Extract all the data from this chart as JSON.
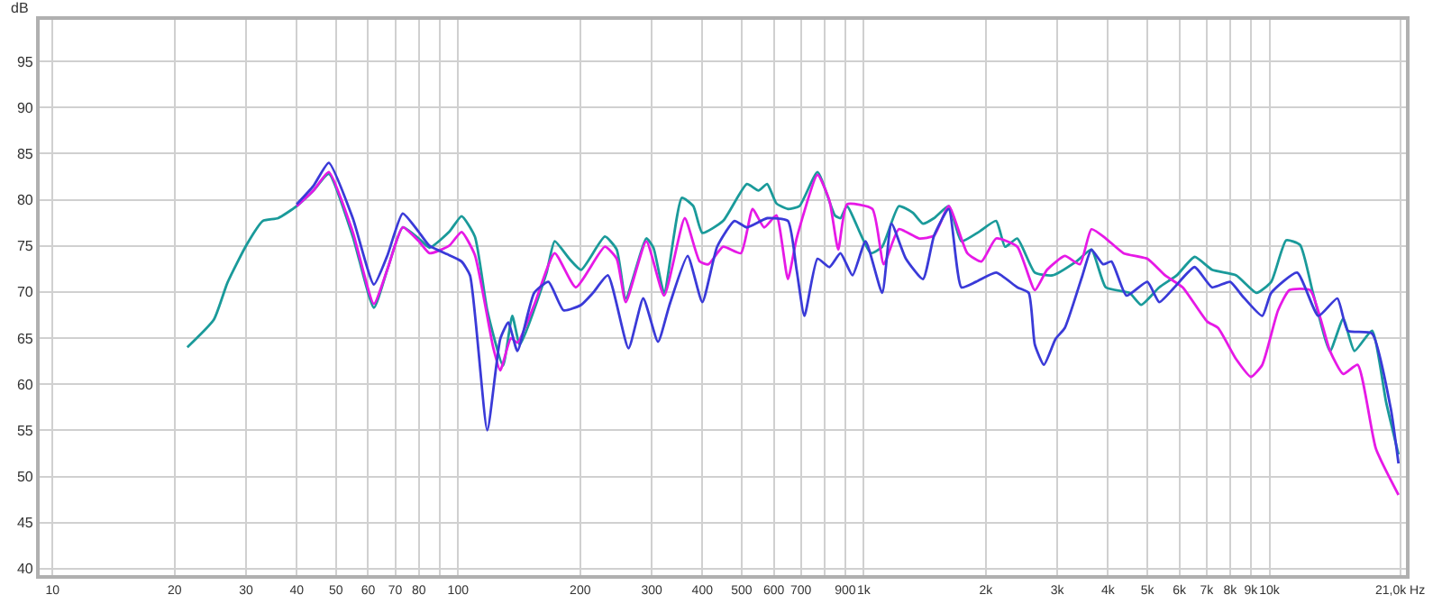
{
  "chart_data": {
    "type": "line",
    "ylabel": "dB",
    "log": "x",
    "grid": true,
    "xlim": [
      9.3,
      21700
    ],
    "ylim": [
      39.3,
      99.5
    ],
    "xticks": [
      10,
      20,
      30,
      40,
      50,
      60,
      70,
      80,
      {
        "value": 90,
        "label": null
      },
      100,
      200,
      300,
      400,
      500,
      600,
      700,
      {
        "value": 800,
        "label": null
      },
      900,
      {
        "value": 1000,
        "label": "1k"
      },
      {
        "value": 2000,
        "label": "2k"
      },
      {
        "value": 3000,
        "label": "3k"
      },
      {
        "value": 4000,
        "label": "4k"
      },
      {
        "value": 5000,
        "label": "5k"
      },
      {
        "value": 6000,
        "label": "6k"
      },
      {
        "value": 7000,
        "label": "7k"
      },
      {
        "value": 8000,
        "label": "8k"
      },
      {
        "value": 9000,
        "label": "9k"
      },
      {
        "value": 10000,
        "label": "10k"
      },
      {
        "value": 21000,
        "label": "21,0k Hz"
      }
    ],
    "yticks": [
      40,
      45,
      50,
      55,
      60,
      65,
      70,
      75,
      80,
      85,
      90,
      95
    ],
    "series": [
      {
        "color": "#1a9a9a",
        "x": [
          21.5,
          25,
          27,
          30,
          33,
          36,
          40,
          44,
          48,
          55,
          62,
          67,
          73,
          80,
          85,
          95,
          102,
          110,
          118,
          129,
          136,
          142,
          165,
          173,
          188,
          201,
          230,
          246,
          259,
          291,
          303,
          322,
          356,
          380,
          400,
          450,
          515,
          550,
          578,
          609,
          650,
          694,
          769,
          849,
          876,
          909,
          1040,
          1110,
          1220,
          1320,
          1400,
          1490,
          1620,
          1740,
          1920,
          2120,
          2230,
          2390,
          2640,
          2920,
          3340,
          3640,
          3950,
          4520,
          4830,
          5350,
          5910,
          6540,
          7220,
          8280,
          9300,
          10100,
          11000,
          11900,
          12800,
          14100,
          15200,
          16200,
          17900,
          19400,
          20800
        ],
        "values": [
          64,
          67,
          71,
          75,
          77.7,
          78,
          79.3,
          81,
          82.8,
          76,
          68.3,
          72.5,
          77,
          75.8,
          74.8,
          76.5,
          78.2,
          76,
          68,
          62,
          67.4,
          64.3,
          72,
          75.5,
          73.6,
          72.4,
          76,
          74.6,
          69.3,
          75.8,
          74.8,
          69.9,
          80.2,
          79.3,
          76.4,
          77.7,
          81.7,
          81,
          81.7,
          79.6,
          79,
          79.3,
          83,
          78.3,
          78,
          79.3,
          74.2,
          74.9,
          79.3,
          78.6,
          77.4,
          78,
          79.3,
          75.5,
          76.5,
          77.7,
          74.9,
          75.8,
          72.1,
          71.8,
          73.3,
          74.6,
          70.5,
          69.9,
          68.6,
          70.5,
          71.8,
          73.8,
          72.4,
          71.8,
          69.9,
          71.1,
          75.6,
          75.1,
          69.9,
          63.6,
          67.1,
          63.6,
          65.8,
          58,
          52.4
        ]
      },
      {
        "color": "#e619e6",
        "x": [
          40,
          44,
          48,
          55,
          62,
          67,
          73,
          80,
          85,
          95,
          102,
          110,
          122,
          127,
          135,
          140,
          154,
          173,
          195,
          230,
          246,
          259,
          291,
          322,
          362,
          394,
          414,
          450,
          498,
          532,
          568,
          609,
          650,
          683,
          769,
          823,
          865,
          909,
          1050,
          1120,
          1220,
          1370,
          1490,
          1620,
          1800,
          1950,
          2120,
          2390,
          2640,
          2830,
          3130,
          3410,
          3640,
          3950,
          4370,
          5000,
          5530,
          6110,
          7020,
          7470,
          8280,
          9000,
          9600,
          10500,
          11200,
          12600,
          14100,
          15200,
          16500,
          18300,
          20800
        ],
        "values": [
          79.3,
          81,
          83,
          76.5,
          68.7,
          72.5,
          77,
          75.5,
          74.2,
          75,
          76.5,
          74,
          64,
          61.5,
          65,
          64.5,
          68.6,
          74.2,
          70.5,
          74.9,
          73.6,
          68.9,
          75.5,
          69.6,
          78,
          73.3,
          73,
          74.9,
          74.2,
          79,
          77,
          78.3,
          71.4,
          75.8,
          82.7,
          79.9,
          74.6,
          79.5,
          79,
          73,
          76.8,
          75.8,
          76.1,
          79.3,
          74.2,
          73.3,
          75.8,
          74.9,
          70.2,
          72.4,
          73.9,
          73,
          76.8,
          75.8,
          74.2,
          73.6,
          71.8,
          70.5,
          66.8,
          66.1,
          62.7,
          60.8,
          62.1,
          68,
          70.2,
          70.2,
          63.6,
          61.1,
          62.1,
          53,
          48
        ]
      },
      {
        "color": "#3a3ad8",
        "x": [
          40,
          44,
          48,
          55,
          62,
          67,
          73,
          80,
          85,
          95,
          102,
          107,
          118,
          127,
          133,
          140,
          154,
          167,
          182,
          201,
          215,
          234,
          263,
          286,
          311,
          332,
          368,
          400,
          435,
          480,
          515,
          578,
          650,
          683,
          714,
          769,
          823,
          876,
          938,
          1010,
          1110,
          1170,
          1270,
          1400,
          1490,
          1620,
          1740,
          1890,
          2120,
          2390,
          2550,
          2640,
          2780,
          2970,
          3130,
          3460,
          3640,
          3890,
          4080,
          4440,
          5000,
          5350,
          5830,
          6540,
          7220,
          8000,
          8560,
          9600,
          10100,
          11700,
          13200,
          14700,
          15600,
          17900,
          19900,
          20800
        ],
        "values": [
          79.5,
          81.5,
          84,
          78,
          70.8,
          74,
          78.5,
          76.5,
          75,
          74,
          73.3,
          71.8,
          55,
          64.9,
          66.7,
          63.6,
          69.9,
          71.1,
          68,
          68.6,
          69.9,
          71.8,
          63.9,
          69.3,
          64.6,
          68.6,
          73.9,
          68.9,
          74.9,
          77.7,
          77,
          78,
          77.7,
          72.4,
          67.4,
          73.6,
          72.7,
          74.2,
          71.8,
          75.5,
          69.9,
          77.4,
          73.6,
          71.4,
          76.1,
          79,
          70.5,
          71.1,
          72.1,
          70.5,
          69.9,
          64.3,
          62.1,
          64.9,
          66.1,
          71.8,
          74.6,
          73,
          73.3,
          69.6,
          71.1,
          68.9,
          70.5,
          72.7,
          70.5,
          71.1,
          69.6,
          67.4,
          69.9,
          72.1,
          67.4,
          69.3,
          65.8,
          65.5,
          57.4,
          51.4
        ]
      }
    ]
  }
}
